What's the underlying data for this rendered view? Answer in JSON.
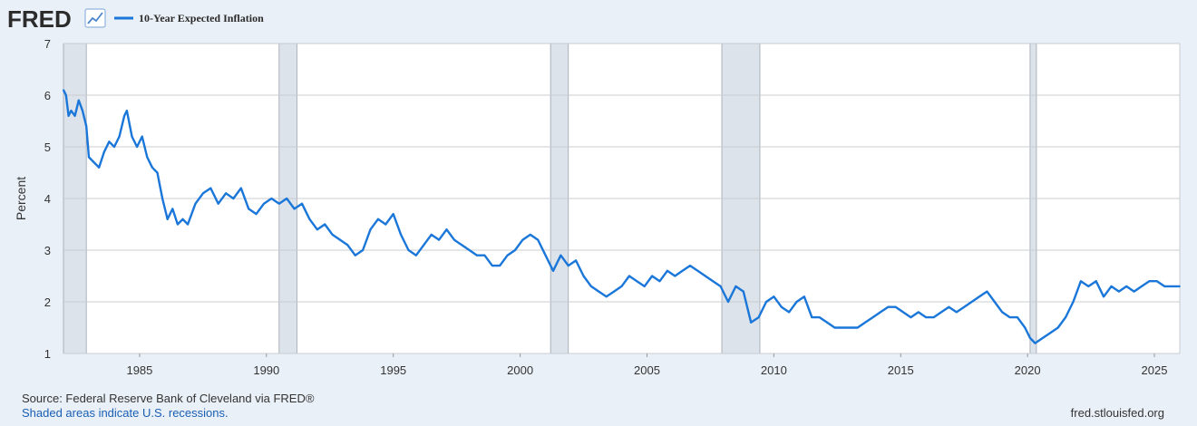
{
  "logo": {
    "text": "FRED",
    "icon": "chart-line-icon"
  },
  "legend": {
    "label": "10-Year Expected Inflation",
    "color": "#1a77d9"
  },
  "footer": {
    "source": "Source: Federal Reserve Bank of Cleveland via FRED®",
    "recession_note": "Shaded areas indicate U.S. recessions.",
    "site": "fred.stlouisfed.org"
  },
  "colors": {
    "line": "#1a77d9",
    "recession": "#dde3ea",
    "plot_bg": "#ffffff",
    "page_bg": "#eaf0f7",
    "grid": "#c8ccd0",
    "link": "#1a5fb4"
  },
  "chart_data": {
    "type": "line",
    "title": "",
    "xlabel": "",
    "ylabel": "Percent",
    "xlim": [
      1982.0,
      2026.0
    ],
    "ylim": [
      1,
      7
    ],
    "x_ticks": [
      "1985",
      "1990",
      "1995",
      "2000",
      "2005",
      "2010",
      "2015",
      "2020",
      "2025"
    ],
    "y_ticks": [
      "1",
      "2",
      "3",
      "4",
      "5",
      "6",
      "7"
    ],
    "grid": true,
    "legend_position": "top-left",
    "recessions": [
      [
        1982.0,
        1982.9
      ],
      [
        1990.5,
        1991.2
      ],
      [
        2001.2,
        2001.9
      ],
      [
        2007.95,
        2009.45
      ],
      [
        2020.1,
        2020.35
      ]
    ],
    "series": [
      {
        "name": "10-Year Expected Inflation",
        "x": [
          1982.0,
          1982.1,
          1982.2,
          1982.3,
          1982.45,
          1982.6,
          1982.75,
          1982.9,
          1983.0,
          1983.2,
          1983.4,
          1983.6,
          1983.8,
          1984.0,
          1984.2,
          1984.4,
          1984.5,
          1984.7,
          1984.9,
          1985.1,
          1985.3,
          1985.5,
          1985.7,
          1985.9,
          1986.1,
          1986.3,
          1986.5,
          1986.7,
          1986.9,
          1987.2,
          1987.5,
          1987.8,
          1988.1,
          1988.4,
          1988.7,
          1989.0,
          1989.3,
          1989.6,
          1989.9,
          1990.2,
          1990.5,
          1990.8,
          1991.1,
          1991.4,
          1991.7,
          1992.0,
          1992.3,
          1992.6,
          1992.9,
          1993.2,
          1993.5,
          1993.8,
          1994.1,
          1994.4,
          1994.7,
          1995.0,
          1995.3,
          1995.6,
          1995.9,
          1996.2,
          1996.5,
          1996.8,
          1997.1,
          1997.4,
          1997.7,
          1998.0,
          1998.3,
          1998.6,
          1998.9,
          1999.2,
          1999.5,
          1999.8,
          2000.1,
          2000.4,
          2000.7,
          2001.0,
          2001.3,
          2001.6,
          2001.9,
          2002.2,
          2002.5,
          2002.8,
          2003.1,
          2003.4,
          2003.7,
          2004.0,
          2004.3,
          2004.6,
          2004.9,
          2005.2,
          2005.5,
          2005.8,
          2006.1,
          2006.4,
          2006.7,
          2007.0,
          2007.3,
          2007.6,
          2007.9,
          2008.2,
          2008.5,
          2008.8,
          2009.1,
          2009.4,
          2009.7,
          2010.0,
          2010.3,
          2010.6,
          2010.9,
          2011.2,
          2011.5,
          2011.8,
          2012.1,
          2012.4,
          2012.7,
          2013.0,
          2013.3,
          2013.6,
          2013.9,
          2014.2,
          2014.5,
          2014.8,
          2015.1,
          2015.4,
          2015.7,
          2016.0,
          2016.3,
          2016.6,
          2016.9,
          2017.2,
          2017.5,
          2017.8,
          2018.1,
          2018.4,
          2018.7,
          2019.0,
          2019.3,
          2019.6,
          2019.9,
          2020.1,
          2020.3,
          2020.6,
          2020.9,
          2021.2,
          2021.5,
          2021.8,
          2022.1,
          2022.4,
          2022.7,
          2023.0,
          2023.3,
          2023.6,
          2023.9,
          2024.2,
          2024.5,
          2024.8,
          2025.1,
          2025.4,
          2025.7,
          2026.0
        ],
        "values": [
          6.1,
          6.0,
          5.6,
          5.7,
          5.6,
          5.9,
          5.7,
          5.4,
          4.8,
          4.7,
          4.6,
          4.9,
          5.1,
          5.0,
          5.2,
          5.6,
          5.7,
          5.2,
          5.0,
          5.2,
          4.8,
          4.6,
          4.5,
          4.0,
          3.6,
          3.8,
          3.5,
          3.6,
          3.5,
          3.9,
          4.1,
          4.2,
          3.9,
          4.1,
          4.0,
          4.2,
          3.8,
          3.7,
          3.9,
          4.0,
          3.9,
          4.0,
          3.8,
          3.9,
          3.6,
          3.4,
          3.5,
          3.3,
          3.2,
          3.1,
          2.9,
          3.0,
          3.4,
          3.6,
          3.5,
          3.7,
          3.3,
          3.0,
          2.9,
          3.1,
          3.3,
          3.2,
          3.4,
          3.2,
          3.1,
          3.0,
          2.9,
          2.9,
          2.7,
          2.7,
          2.9,
          3.0,
          3.2,
          3.3,
          3.2,
          2.9,
          2.6,
          2.9,
          2.7,
          2.8,
          2.5,
          2.3,
          2.2,
          2.1,
          2.2,
          2.3,
          2.5,
          2.4,
          2.3,
          2.5,
          2.4,
          2.6,
          2.5,
          2.6,
          2.7,
          2.6,
          2.5,
          2.4,
          2.3,
          2.0,
          2.3,
          2.2,
          1.6,
          1.7,
          2.0,
          2.1,
          1.9,
          1.8,
          2.0,
          2.1,
          1.7,
          1.7,
          1.6,
          1.5,
          1.5,
          1.5,
          1.5,
          1.6,
          1.7,
          1.8,
          1.9,
          1.9,
          1.8,
          1.7,
          1.8,
          1.7,
          1.7,
          1.8,
          1.9,
          1.8,
          1.9,
          2.0,
          2.1,
          2.2,
          2.0,
          1.8,
          1.7,
          1.7,
          1.5,
          1.3,
          1.2,
          1.3,
          1.4,
          1.5,
          1.7,
          2.0,
          2.4,
          2.3,
          2.4,
          2.1,
          2.3,
          2.2,
          2.3,
          2.2,
          2.3,
          2.4,
          2.4,
          2.3,
          2.3,
          2.3
        ]
      }
    ]
  }
}
